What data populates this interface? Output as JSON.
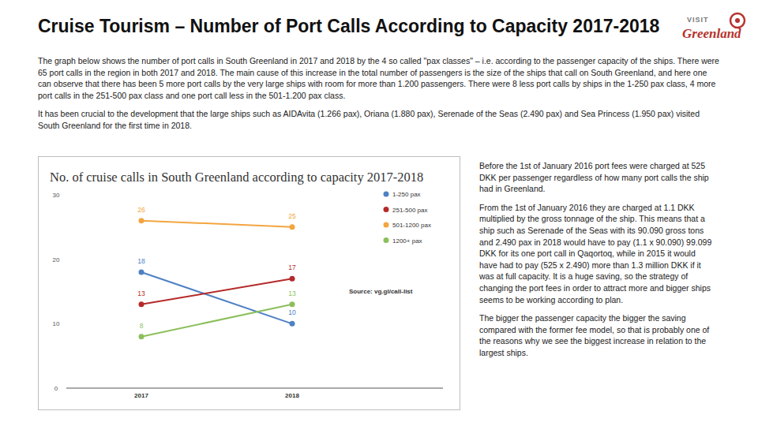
{
  "page": {
    "title": "Cruise Tourism – Number of Port Calls According to Capacity 2017-2018",
    "logo": {
      "top": "VISIT",
      "bottom": "Greenland"
    },
    "paragraphs": [
      "The graph below shows the number of port calls in South Greenland in 2017 and 2018 by the 4 so called \"pax classes\" – i.e. according to the passenger capacity of the ships. There were 65 port calls in the region in both 2017 and 2018. The main cause of this increase in the total number of passengers is the size of the ships that call on South Greenland, and here one can observe that there has been 5 more port calls by the very large ships with room for more than 1.200 passengers. There were 8 less port calls by ships in the 1-250 pax class, 4 more port calls in the 251-500 pax class and one port call less in the 501-1.200 pax class.",
      "It has been crucial to the development that the large ships such as AIDAvita (1.266 pax), Oriana (1.880 pax), Serenade of the Seas (2.490 pax) and Sea Princess (1.950 pax) visited South Greenland for the first time in 2018."
    ],
    "side_text": [
      "Before the 1st of January 2016 port fees were charged at 525 DKK per passenger regardless of how many port calls the ship had in Greenland.",
      "From the 1st of January 2016 they are charged at 1.1 DKK multiplied by the gross tonnage of the ship. This means that a ship such as Serenade of the Seas with its 90.090 gross tons and 2.490 pax in 2018 would have to pay (1.1 x 90.090) 99.099 DKK for its one port call in Qaqortoq, while in 2015 it would have had to pay (525 x 2.490) more than 1.3 million DKK if it was at full capacity. It is a huge saving, so the strategy of changing the port fees in order to attract more and bigger ships seems to be working according to plan.",
      "The bigger the passenger capacity the bigger the saving compared with the former fee model, so that is probably one of the reasons why we see the biggest increase in relation to the largest ships."
    ]
  },
  "chart_data": {
    "type": "line",
    "title": "No. of cruise calls in South Greenland according to capacity 2017-2018",
    "categories": [
      "2017",
      "2018"
    ],
    "series": [
      {
        "name": "1-250 pax",
        "color": "#4f81c4",
        "values": [
          18,
          10
        ]
      },
      {
        "name": "251-500 pax",
        "color": "#b52a2a",
        "values": [
          13,
          17
        ]
      },
      {
        "name": "501-1200 pax",
        "color": "#f3a540",
        "values": [
          26,
          25
        ]
      },
      {
        "name": "1200+ pax",
        "color": "#8cbf5c",
        "values": [
          8,
          13
        ]
      }
    ],
    "ylim": [
      0,
      30
    ],
    "yticks": [
      0,
      10,
      20,
      30
    ],
    "grid": false,
    "legend": "upper right",
    "data_labels": true,
    "marker": "circle",
    "annotations": [
      "Source: vg.gl/call-list"
    ]
  }
}
